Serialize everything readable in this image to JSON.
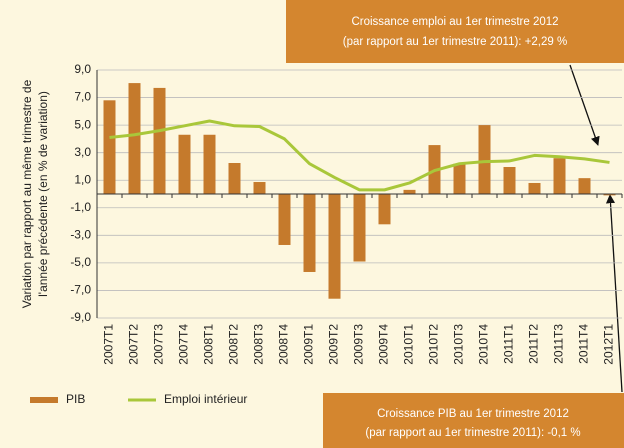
{
  "chart_data": {
    "type": "bar_line",
    "y_label": [
      "Variation par rapport au même trimestre de",
      "l'année précédente (en % de variation)"
    ],
    "categories": [
      "2007T1",
      "2007T2",
      "2007T3",
      "2007T4",
      "2008T1",
      "2008T2",
      "2008T3",
      "2008T4",
      "2009T1",
      "2009T2",
      "2009T3",
      "2009T4",
      "2010T1",
      "2010T2",
      "2010T3",
      "2010T4",
      "2011T1",
      "2011T2",
      "2011T3",
      "2011T4",
      "2012T1"
    ],
    "series": [
      {
        "name": "PIB",
        "kind": "bar",
        "color": "#c57a2c",
        "values": [
          6.8,
          8.05,
          7.7,
          4.3,
          4.3,
          2.25,
          0.87,
          -3.7,
          -5.66,
          -7.6,
          -4.9,
          -2.2,
          0.3,
          3.55,
          2.2,
          5.0,
          1.96,
          0.8,
          2.6,
          1.15,
          -0.1
        ]
      },
      {
        "name": "Emploi intérieur",
        "kind": "line",
        "color": "#a9c73a",
        "values": [
          4.1,
          4.3,
          4.6,
          4.95,
          5.3,
          4.95,
          4.9,
          4.0,
          2.2,
          1.2,
          0.3,
          0.3,
          0.8,
          1.7,
          2.2,
          2.35,
          2.4,
          2.8,
          2.7,
          2.55,
          2.29
        ]
      }
    ],
    "ylim": [
      -9,
      9
    ],
    "yticks": [
      {
        "value": -9,
        "label": "-9,0"
      },
      {
        "value": -7,
        "label": "-7,0"
      },
      {
        "value": -5,
        "label": "-5,0"
      },
      {
        "value": -3,
        "label": "-3,0"
      },
      {
        "value": -1,
        "label": "-1,0"
      },
      {
        "value": 1,
        "label": "1,0"
      },
      {
        "value": 3,
        "label": "3,0"
      },
      {
        "value": 5,
        "label": "5,0"
      },
      {
        "value": 7,
        "label": "7,0"
      },
      {
        "value": 9,
        "label": "9,0"
      }
    ],
    "grid": true,
    "annotations": [
      [
        "Croissance emploi au 1er trimestre 2012",
        "(par rapport au 1er trimestre 2011): +2,29 %"
      ],
      [
        "Croissance PIB au 1er trimestre 2012",
        "(par rapport au 1er trimestre 2011): -0,1 %"
      ]
    ]
  }
}
